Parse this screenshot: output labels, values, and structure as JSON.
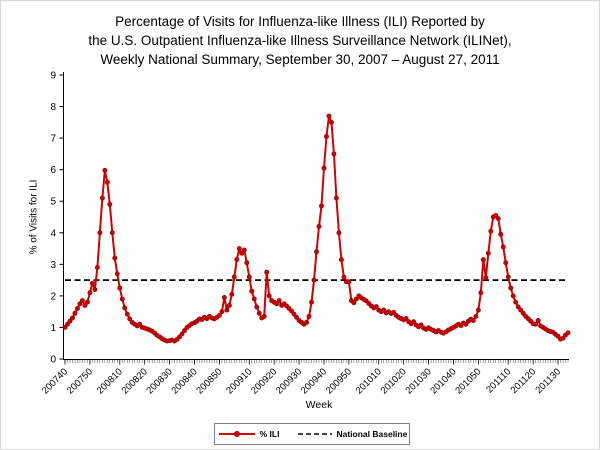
{
  "chart_data": {
    "type": "line",
    "title_lines": [
      "Percentage of Visits for Influenza-like Illness (ILI) Reported by",
      "the U.S. Outpatient Influenza-like Illness Surveillance Network (ILINet),",
      "Weekly National Summary, September 30, 2007 – August 27, 2011"
    ],
    "xlabel": "Week",
    "ylabel": "% of Visits for ILI",
    "ylim": [
      0,
      9
    ],
    "ytick_interval": 1,
    "grid": "off",
    "legend_position": "bottom-center",
    "x_start_week": "200740",
    "x_end_week": "201134",
    "x_tick_labels": [
      "200740",
      "200750",
      "200810",
      "200820",
      "200830",
      "200840",
      "200850",
      "200910",
      "200920",
      "200930",
      "200940",
      "200950",
      "201010",
      "201020",
      "201030",
      "201040",
      "201050",
      "201110",
      "201120",
      "201130"
    ],
    "series": [
      {
        "name": "% ILI",
        "type": "line-markers",
        "color": "#D40000",
        "marker_edge_color": "#8F0000",
        "marker": "circle",
        "values_by_year": {
          "2007": [
            1.0,
            1.1,
            1.2,
            1.3,
            1.45,
            1.6,
            1.75,
            1.85,
            1.7,
            1.8,
            2.1,
            2.4,
            2.2
          ],
          "2008": [
            2.9,
            4.0,
            5.1,
            5.98,
            5.6,
            4.9,
            4.0,
            3.2,
            2.7,
            2.25,
            1.9,
            1.62,
            1.42,
            1.27,
            1.16,
            1.1,
            1.05,
            1.1,
            1.0,
            0.98,
            0.95,
            0.92,
            0.88,
            0.82,
            0.75,
            0.7,
            0.64,
            0.6,
            0.57,
            0.58,
            0.6,
            0.57,
            0.62,
            0.7,
            0.79,
            0.9,
            1.0,
            1.06,
            1.12,
            1.15,
            1.2,
            1.27,
            1.25,
            1.32,
            1.28,
            1.35,
            1.3,
            1.27,
            1.32,
            1.38,
            1.5,
            1.95
          ],
          "2009": [
            1.55,
            1.7,
            2.05,
            2.6,
            3.15,
            3.5,
            3.35,
            3.45,
            3.05,
            2.6,
            2.15,
            1.9,
            1.65,
            1.45,
            1.3,
            1.35,
            2.75,
            2.0,
            1.85,
            1.8,
            1.75,
            1.85,
            1.7,
            1.75,
            1.68,
            1.6,
            1.52,
            1.42,
            1.32,
            1.22,
            1.16,
            1.1,
            1.16,
            1.35,
            1.8,
            2.5,
            3.4,
            4.2,
            4.85,
            6.05,
            7.05,
            7.7,
            7.5,
            6.5,
            5.1,
            4.0,
            3.15,
            2.6,
            2.45,
            2.45,
            1.85,
            1.78
          ],
          "2010": [
            1.9,
            2.0,
            1.94,
            1.89,
            1.84,
            1.76,
            1.68,
            1.62,
            1.66,
            1.55,
            1.5,
            1.55,
            1.46,
            1.5,
            1.44,
            1.48,
            1.38,
            1.32,
            1.28,
            1.24,
            1.28,
            1.18,
            1.12,
            1.18,
            1.08,
            1.02,
            1.08,
            0.98,
            0.94,
            0.99,
            0.94,
            0.9,
            0.86,
            0.9,
            0.85,
            0.82,
            0.86,
            0.92,
            0.96,
            1.0,
            1.05,
            1.1,
            1.06,
            1.14,
            1.1,
            1.2,
            1.26,
            1.22,
            1.35,
            1.55,
            2.1,
            3.15
          ],
          "2011": [
            2.58,
            3.35,
            4.05,
            4.5,
            4.55,
            4.45,
            3.95,
            3.55,
            3.05,
            2.6,
            2.25,
            2.0,
            1.8,
            1.65,
            1.55,
            1.45,
            1.35,
            1.28,
            1.2,
            1.12,
            1.1,
            1.22,
            1.05,
            1.0,
            0.95,
            0.9,
            0.87,
            0.85,
            0.78,
            0.72,
            0.63,
            0.66,
            0.76,
            0.83
          ]
        }
      },
      {
        "name": "National Baseline",
        "type": "dashed-horizontal",
        "color": "#000000",
        "value": 2.5
      }
    ]
  }
}
